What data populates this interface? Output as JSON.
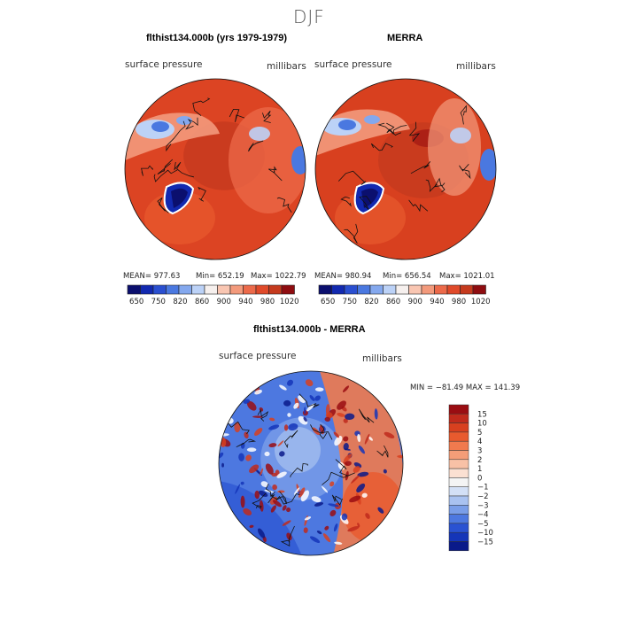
{
  "figure": {
    "title": "DJF"
  },
  "chart_data": [
    {
      "type": "heatmap",
      "title": "flthist134.000b (yrs 1979-1979)",
      "subtitle": "surface pressure",
      "units": "millibars",
      "projection": "polar stereographic (north pole)",
      "stats": {
        "mean_label": "MEAN= 977.63",
        "min_label": "Min= 652.19",
        "max_label": "Max= 1022.79"
      },
      "colorbar": {
        "tick_labels": [
          "650",
          "750",
          "820",
          "860",
          "900",
          "940",
          "980",
          "1020"
        ],
        "colors": [
          "#0b0f6e",
          "#1229b0",
          "#2a4fd0",
          "#4a78e0",
          "#84a8ee",
          "#bcd2f7",
          "#f6f0ee",
          "#f9c6b2",
          "#f39a7c",
          "#ec6a4a",
          "#e04a2a",
          "#c53a1e",
          "#8e0c10"
        ]
      }
    },
    {
      "type": "heatmap",
      "title": "MERRA",
      "subtitle": "surface pressure",
      "units": "millibars",
      "projection": "polar stereographic (north pole)",
      "stats": {
        "mean_label": "MEAN= 980.94",
        "min_label": "Min= 656.54",
        "max_label": "Max= 1021.01"
      },
      "colorbar": {
        "tick_labels": [
          "650",
          "750",
          "820",
          "860",
          "900",
          "940",
          "980",
          "1020"
        ],
        "colors": [
          "#0b0f6e",
          "#1229b0",
          "#2a4fd0",
          "#4a78e0",
          "#84a8ee",
          "#bcd2f7",
          "#f6f0ee",
          "#f9c6b2",
          "#f39a7c",
          "#ec6a4a",
          "#e04a2a",
          "#c53a1e",
          "#8e0c10"
        ]
      }
    },
    {
      "type": "heatmap",
      "title": "flthist134.000b - MERRA",
      "subtitle": "surface pressure",
      "units": "millibars",
      "projection": "polar stereographic (north pole)",
      "stats": {
        "minmax_label": "MIN = −81.49 MAX = 141.39"
      },
      "colorbar": {
        "tick_labels": [
          "15",
          "10",
          "5",
          "4",
          "3",
          "2",
          "1",
          "0",
          "−1",
          "−2",
          "−3",
          "−4",
          "−5",
          "−10",
          "−15"
        ],
        "colors": [
          "#9a0d12",
          "#c02a1c",
          "#d8401f",
          "#e85a2e",
          "#f07a4e",
          "#f49d78",
          "#f8c1a6",
          "#fbe0d2",
          "#f4f4f4",
          "#d3e0f6",
          "#a9c2f0",
          "#7a9ee8",
          "#4d78e0",
          "#2a52d2",
          "#1535b8",
          "#0a1a8a"
        ]
      }
    }
  ]
}
